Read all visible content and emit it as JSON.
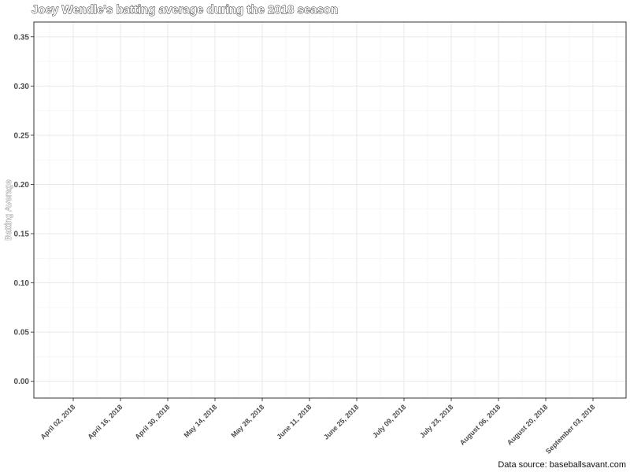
{
  "chart_data": {
    "type": "line",
    "title": "Joey Wendle's batting average during the 2018 season",
    "xlabel": "",
    "ylabel": "Batting Average",
    "caption": "Data source: baseballsavant.com",
    "x_tick_labels": [
      "April 02, 2018",
      "April 16, 2018",
      "April 30, 2018",
      "May 14, 2018",
      "May 28, 2018",
      "June 11, 2018",
      "June 25, 2018",
      "July 09, 2018",
      "July 23, 2018",
      "August 06, 2018",
      "August 20, 2018",
      "September 03, 2018"
    ],
    "y_tick_labels": [
      "0.00",
      "0.05",
      "0.10",
      "0.15",
      "0.20",
      "0.25",
      "0.30",
      "0.35"
    ],
    "y_ticks": [
      0,
      0.05,
      0.1,
      0.15,
      0.2,
      0.25,
      0.3,
      0.35
    ],
    "ylim": [
      -0.017,
      0.365
    ],
    "series": [],
    "grid": true,
    "legend": "none"
  }
}
